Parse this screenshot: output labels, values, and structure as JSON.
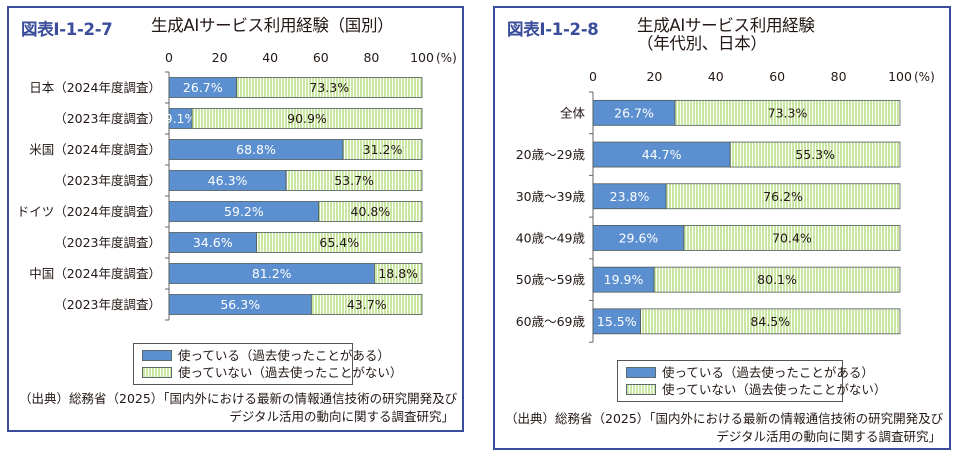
{
  "colors": {
    "used": "#5b8fd0",
    "unused": "#c9e6a2",
    "frame": "#3a4d9a"
  },
  "legend": {
    "used": "使っている（過去使ったことがある）",
    "unused": "使っていない（過去使ったことがない）"
  },
  "source": {
    "line1": "（出典）総務省（2025）「国内外における最新の情報通信技術の研究開発及び",
    "line2": "デジタル活用の動向に関する調査研究」"
  },
  "chart_data": [
    {
      "type": "bar",
      "orientation": "horizontal",
      "stacked": true,
      "figure_id": "図表Ⅰ-1-2-7",
      "title": "生成AIサービス利用経験（国別）",
      "categories": [
        "日本（2024年度調査）",
        "（2023年度調査）",
        "米国（2024年度調査）",
        "（2023年度調査）",
        "ドイツ（2024年度調査）",
        "（2023年度調査）",
        "中国（2024年度調査）",
        "（2023年度調査）"
      ],
      "series": [
        {
          "name": "使っている（過去使ったことがある）",
          "values": [
            26.7,
            9.1,
            68.8,
            46.3,
            59.2,
            34.6,
            81.2,
            56.3
          ]
        },
        {
          "name": "使っていない（過去使ったことがない）",
          "values": [
            73.3,
            90.9,
            31.2,
            53.7,
            40.8,
            65.4,
            18.8,
            43.7
          ]
        }
      ],
      "value_labels": [
        [
          "26.7%",
          "9.1%",
          "68.8%",
          "46.3%",
          "59.2%",
          "34.6%",
          "81.2%",
          "56.3%"
        ],
        [
          "73.3%",
          "90.9%",
          "31.2%",
          "53.7%",
          "40.8%",
          "65.4%",
          "18.8%",
          "43.7%"
        ]
      ],
      "xticks": [
        "0",
        "20",
        "40",
        "60",
        "80",
        "100"
      ],
      "unit": "(%)",
      "xlim": [
        0,
        100
      ]
    },
    {
      "type": "bar",
      "orientation": "horizontal",
      "stacked": true,
      "figure_id": "図表Ⅰ-1-2-8",
      "title": "生成AIサービス利用経験",
      "subtitle": "（年代別、日本）",
      "categories": [
        "全体",
        "20歳～29歳",
        "30歳～39歳",
        "40歳～49歳",
        "50歳～59歳",
        "60歳～69歳"
      ],
      "series": [
        {
          "name": "使っている（過去使ったことがある）",
          "values": [
            26.7,
            44.7,
            23.8,
            29.6,
            19.9,
            15.5
          ]
        },
        {
          "name": "使っていない（過去使ったことがない）",
          "values": [
            73.3,
            55.3,
            76.2,
            70.4,
            80.1,
            84.5
          ]
        }
      ],
      "value_labels": [
        [
          "26.7%",
          "44.7%",
          "23.8%",
          "29.6%",
          "19.9%",
          "15.5%"
        ],
        [
          "73.3%",
          "55.3%",
          "76.2%",
          "70.4%",
          "80.1%",
          "84.5%"
        ]
      ],
      "xticks": [
        "0",
        "20",
        "40",
        "60",
        "80",
        "100"
      ],
      "unit": "(%)",
      "xlim": [
        0,
        100
      ]
    }
  ]
}
